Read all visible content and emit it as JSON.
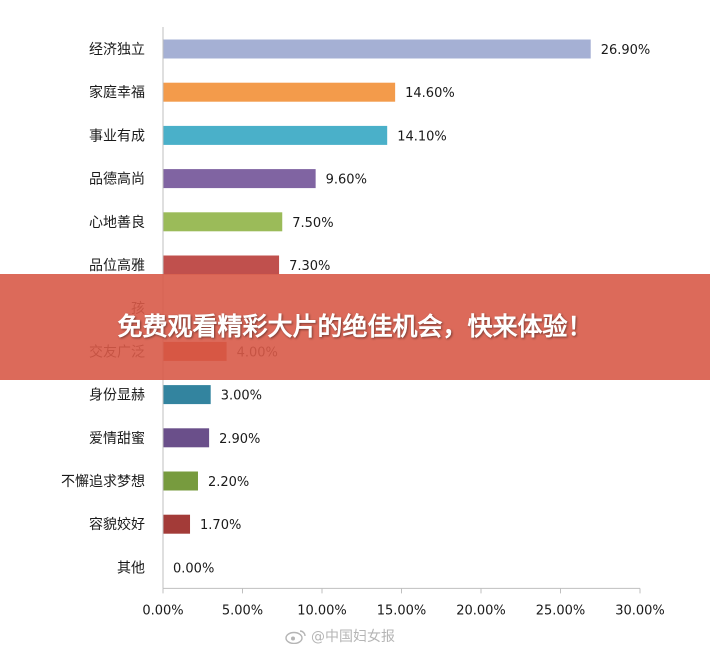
{
  "chart_data": {
    "type": "bar",
    "orientation": "horizontal",
    "categories": [
      "经济独立",
      "家庭幸福",
      "事业有成",
      "品德高尚",
      "心地善良",
      "品位高雅",
      "孩",
      "交友广泛",
      "身份显赫",
      "爱情甜蜜",
      "不懈追求梦想",
      "容貌姣好",
      "其他"
    ],
    "values": [
      26.9,
      14.6,
      14.1,
      9.6,
      7.5,
      7.3,
      null,
      4.0,
      3.0,
      2.9,
      2.2,
      1.7,
      0.0
    ],
    "value_labels": [
      "26.90%",
      "14.60%",
      "14.10%",
      "9.60%",
      "7.50%",
      "7.30%",
      "",
      "4.00%",
      "3.00%",
      "2.90%",
      "2.20%",
      "1.70%",
      "0.00%"
    ],
    "colors": [
      "#a5b0d4",
      "#f39b4b",
      "#4ab0c9",
      "#8064a2",
      "#9bbb59",
      "#c0504d",
      "#2c4d75",
      "#c8441f",
      "#33849f",
      "#6a4f8a",
      "#779b3e",
      "#a33b38",
      "#8c8c8c"
    ],
    "xlim": [
      0,
      30
    ],
    "x_ticks": [
      0,
      5,
      10,
      15,
      20,
      25,
      30
    ],
    "x_tick_labels": [
      "0.00%",
      "5.00%",
      "10.00%",
      "15.00%",
      "20.00%",
      "25.00%",
      "30.00%"
    ],
    "title": "",
    "xlabel": "",
    "ylabel": "",
    "grid": false,
    "legend": "none"
  },
  "banner": {
    "text": "免费观看精彩大片的绝佳机会，快来体验！",
    "color": "#d85a48"
  },
  "watermark": {
    "icon": "weibo-icon",
    "text": "@中国妇女报"
  }
}
